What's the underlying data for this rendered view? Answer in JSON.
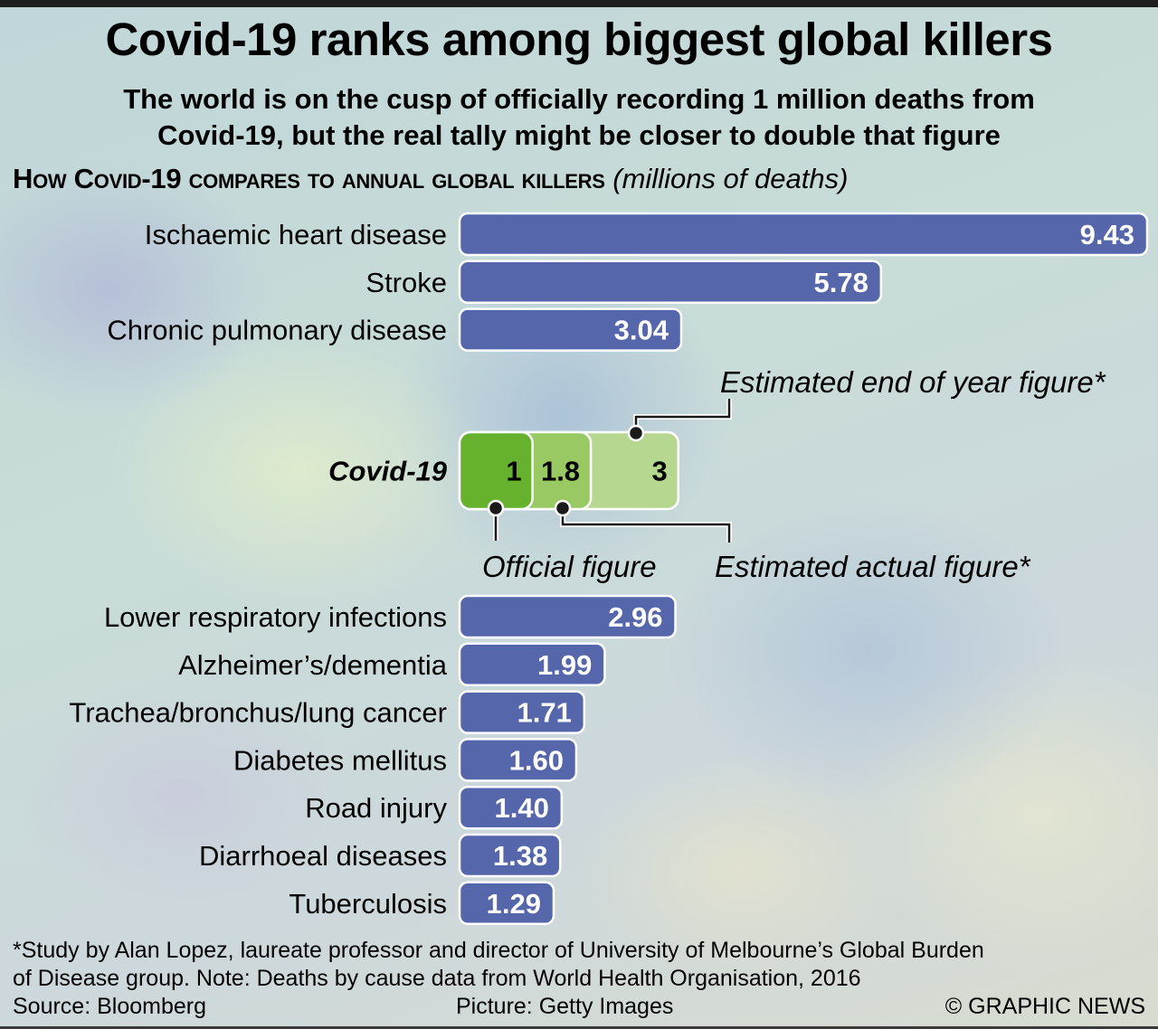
{
  "title": "Covid-19 ranks among biggest global killers",
  "subtitle_line1": "The world is on the cusp of officially recording 1 million deaths from",
  "subtitle_line2": "Covid-19, but the real tally might be closer to double that figure",
  "colors": {
    "bar": "#5566ab",
    "bar_border": "#ffffff",
    "covid_official": "#66b22e",
    "covid_actual": "#99c963",
    "covid_end_of_year": "#b5d78f"
  },
  "chart_data": {
    "type": "bar",
    "orientation": "horizontal",
    "title": "How Covid-19 compares to annual global killers",
    "unit_label": "(millions of deaths)",
    "xlabel": "",
    "ylabel": "",
    "xlim": [
      0,
      9.43
    ],
    "grid": false,
    "categories_top": [
      "Ischaemic heart disease",
      "Stroke",
      "Chronic pulmonary disease"
    ],
    "values_top": [
      9.43,
      5.78,
      3.04
    ],
    "covid": {
      "label": "Covid-19",
      "series": [
        {
          "name": "Official figure",
          "value": 1,
          "display": "1"
        },
        {
          "name": "Estimated actual figure*",
          "value": 1.8,
          "display": "1.8"
        },
        {
          "name": "Estimated end of year figure*",
          "value": 3,
          "display": "3"
        }
      ]
    },
    "categories_bottom": [
      "Lower respiratory infections",
      "Alzheimer’s/dementia",
      "Trachea/bronchus/lung cancer",
      "Diabetes mellitus",
      "Road injury",
      "Diarrhoeal diseases",
      "Tuberculosis"
    ],
    "values_bottom": [
      2.96,
      1.99,
      1.71,
      1.6,
      1.4,
      1.38,
      1.29
    ],
    "value_labels_top": [
      "9.43",
      "5.78",
      "3.04"
    ],
    "value_labels_bottom": [
      "2.96",
      "1.99",
      "1.71",
      "1.60",
      "1.40",
      "1.38",
      "1.29"
    ]
  },
  "footnote_line1": "*Study by Alan Lopez, laureate professor and director of University of Melbourne’s Global Burden",
  "footnote_line2": "of Disease group. Note: Deaths by cause data from World Health Organisation, 2016",
  "credits": {
    "source": "Source: Bloomberg",
    "picture": "Picture: Getty Images",
    "copyright": "© GRAPHIC NEWS"
  }
}
